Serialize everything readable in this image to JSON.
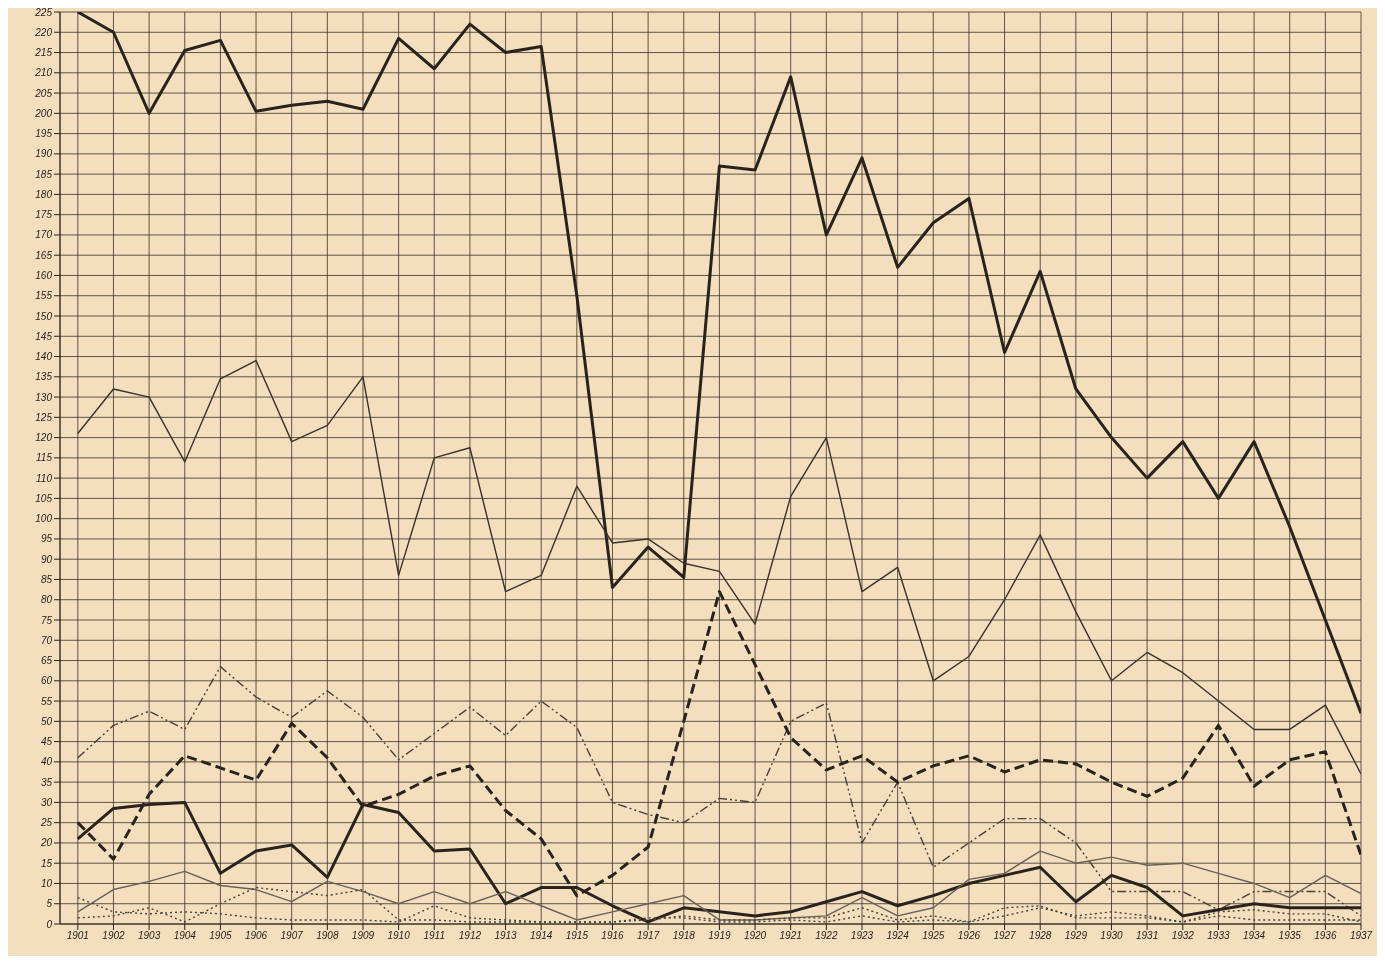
{
  "chart_data": {
    "type": "line",
    "categories": [
      "1901",
      "1902",
      "1903",
      "1904",
      "1905",
      "1906",
      "1907",
      "1908",
      "1909",
      "1910",
      "1911",
      "1912",
      "1913",
      "1914",
      "1915",
      "1916",
      "1917",
      "1918",
      "1919",
      "1920",
      "1921",
      "1922",
      "1923",
      "1924",
      "1925",
      "1926",
      "1927",
      "1928",
      "1929",
      "1930",
      "1931",
      "1932",
      "1933",
      "1934",
      "1935",
      "1936",
      "1937"
    ],
    "series": [
      {
        "color": "#2a221c",
        "line_style": "solid",
        "values": [
          225,
          220,
          200,
          215.5,
          218,
          200.5,
          202,
          203,
          201,
          218.5,
          211,
          222,
          215,
          216.5,
          155,
          83,
          93,
          85.5,
          187,
          186,
          209,
          170,
          189,
          162,
          173,
          179,
          141,
          161,
          132,
          120,
          110,
          119,
          105,
          119,
          98,
          75,
          52
        ]
      },
      {
        "color": "#3a312a",
        "line_style": "solid",
        "values": [
          121,
          132,
          130,
          114,
          134.5,
          139,
          119,
          123,
          135,
          86,
          115,
          117.5,
          82,
          86,
          108,
          94,
          95,
          89,
          87,
          74,
          105.5,
          120,
          82,
          88,
          60,
          66,
          80,
          96,
          77,
          60,
          67,
          62,
          55,
          48,
          48,
          54,
          37
        ]
      },
      {
        "color": "#4a4038",
        "line_style": "dashdot",
        "values": [
          41,
          49,
          52.5,
          48,
          63.5,
          56,
          51,
          57.5,
          51,
          40.5,
          47,
          53.5,
          46.5,
          55,
          48.5,
          30,
          27,
          25,
          31,
          30,
          50,
          54.5,
          20,
          35,
          14,
          20,
          26,
          26,
          20,
          8,
          8,
          8,
          3.5,
          8,
          8,
          8,
          2
        ]
      },
      {
        "color": "#2a221c",
        "line_style": "dashed",
        "values": [
          25,
          16,
          32,
          41.5,
          38.5,
          35.5,
          49.5,
          41,
          29,
          32,
          36.5,
          39,
          28,
          21,
          7,
          12,
          19,
          50,
          82,
          64,
          46,
          38,
          41.5,
          35,
          39,
          41.5,
          37.5,
          40.5,
          39.5,
          35,
          31.5,
          36,
          49,
          34,
          40.5,
          42.5,
          17
        ]
      },
      {
        "color": "#2a221c",
        "line_style": "solid",
        "values": [
          21,
          28.5,
          29.5,
          30,
          12.5,
          18,
          19.5,
          11.5,
          29.5,
          27.5,
          18,
          18.5,
          5,
          9,
          9,
          4.5,
          0.5,
          4,
          3,
          2,
          3,
          5.5,
          8,
          4.5,
          7,
          10,
          12,
          14,
          5.5,
          12,
          9,
          2,
          3.5,
          5,
          4,
          4,
          4
        ]
      },
      {
        "color": "#6a6058",
        "line_style": "solid",
        "values": [
          3,
          8.5,
          10.5,
          13,
          9.5,
          8.5,
          5.5,
          10.5,
          8,
          5,
          8,
          5,
          8,
          4.5,
          1,
          3,
          5,
          7,
          1,
          1,
          1.5,
          2,
          6.5,
          2,
          4,
          11,
          12.5,
          18,
          15,
          16.5,
          14.5,
          15,
          12.5,
          10,
          6.5,
          12,
          7.5
        ]
      },
      {
        "color": "#4a4038",
        "line_style": "dotted",
        "values": [
          1.5,
          2,
          4,
          0.5,
          5,
          9,
          8,
          7,
          8.5,
          1,
          1,
          0.5,
          0.5,
          0.5,
          0.5,
          0.5,
          1.5,
          1.5,
          0.5,
          0.5,
          1,
          0.5,
          2,
          0.5,
          1,
          0.5,
          2,
          4,
          2,
          3,
          2,
          0.5,
          2,
          1,
          1,
          1,
          1
        ]
      },
      {
        "color": "#4a4038",
        "line_style": "dotted",
        "values": [
          6.5,
          3,
          2.5,
          3,
          2.5,
          1.5,
          1,
          1,
          1,
          0.5,
          4.5,
          1.5,
          1,
          0.5,
          0.5,
          0.5,
          1,
          2,
          1,
          1,
          1.5,
          1.5,
          4,
          1,
          2,
          0.5,
          4,
          4.5,
          1.5,
          1.5,
          1.5,
          0.5,
          3,
          3.5,
          2.5,
          2.5,
          0.5
        ]
      }
    ],
    "ylim": [
      0,
      225
    ],
    "yticks": [
      0,
      5,
      10,
      15,
      20,
      25,
      30,
      35,
      40,
      45,
      50,
      55,
      60,
      65,
      70,
      75,
      80,
      85,
      90,
      95,
      100,
      105,
      110,
      115,
      120,
      125,
      130,
      135,
      140,
      145,
      150,
      155,
      160,
      165,
      170,
      175,
      180,
      185,
      190,
      195,
      200,
      205,
      210,
      215,
      220,
      225
    ],
    "grid": true,
    "marker": "none"
  }
}
